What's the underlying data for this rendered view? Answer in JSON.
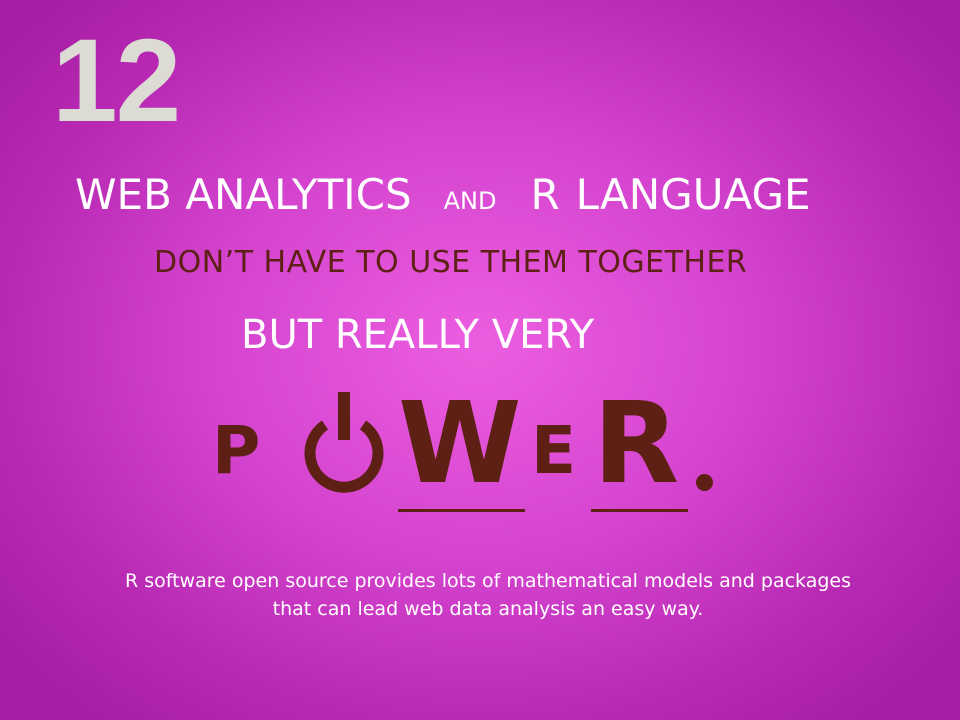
{
  "slide": {
    "number": "12",
    "line1": {
      "part1": "WEB ANALYTICS",
      "and": "AND",
      "r": "R",
      "part2": "LANGUAGE"
    },
    "line2": "DON’T HAVE TO USE THEM TOGETHER",
    "line3": "BUT REALLY  VERY",
    "power_word": {
      "p": "P",
      "o_icon": "power-icon",
      "w": "W",
      "e": "E",
      "r": "R"
    },
    "caption": {
      "line1": "R software open source provides lots of mathematical models and packages",
      "line2": "that can lead web data analysis an easy way."
    },
    "colors": {
      "background_center": "#ec5ee0",
      "background_edge": "#a71fa4",
      "number": "#dcdcd4",
      "accent_brown": "#5e2014",
      "text_white": "#ffffff"
    }
  }
}
